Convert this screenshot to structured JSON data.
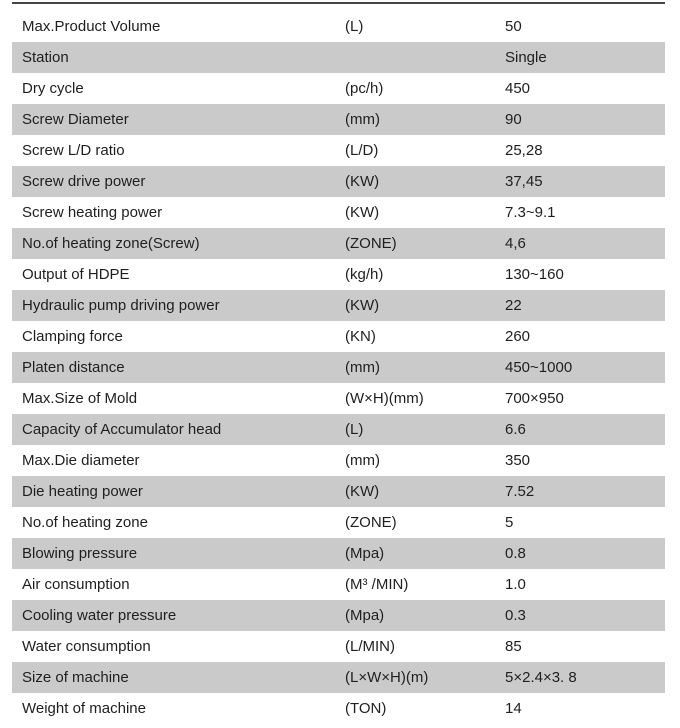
{
  "colors": {
    "row_alt_bg": "#cacaca",
    "text": "#1f1f1f",
    "top_border": "#454545",
    "page_bg": "#ffffff"
  },
  "table": {
    "columns": [
      "parameter",
      "unit",
      "value"
    ],
    "rows": [
      {
        "parameter": "Max.Product Volume",
        "unit": "(L)",
        "value": "50"
      },
      {
        "parameter": "Station",
        "unit": "",
        "value": "Single"
      },
      {
        "parameter": "Dry cycle",
        "unit": "(pc/h)",
        "value": "450"
      },
      {
        "parameter": "Screw Diameter",
        "unit": "(mm)",
        "value": "90"
      },
      {
        "parameter": "Screw L/D ratio",
        "unit": "(L/D)",
        "value": "25,28"
      },
      {
        "parameter": "Screw drive power",
        "unit": "(KW)",
        "value": "37,45"
      },
      {
        "parameter": "Screw heating power",
        "unit": "(KW)",
        "value": "7.3~9.1"
      },
      {
        "parameter": "No.of heating zone(Screw)",
        "unit": "(ZONE)",
        "value": "4,6"
      },
      {
        "parameter": "Output of HDPE",
        "unit": "(kg/h)",
        "value": "130~160"
      },
      {
        "parameter": "Hydraulic pump driving power",
        "unit": "(KW)",
        "value": "22"
      },
      {
        "parameter": "Clamping force",
        "unit": "(KN)",
        "value": "260"
      },
      {
        "parameter": "Platen distance",
        "unit": "(mm)",
        "value": "450~1000"
      },
      {
        "parameter": "Max.Size of Mold",
        "unit": "(W×H)(mm)",
        "value": "700×950"
      },
      {
        "parameter": "Capacity of Accumulator head",
        "unit": "(L)",
        "value": "6.6"
      },
      {
        "parameter": "Max.Die diameter",
        "unit": "(mm)",
        "value": "350"
      },
      {
        "parameter": "Die heating power",
        "unit": "(KW)",
        "value": "7.52"
      },
      {
        "parameter": "No.of heating zone",
        "unit": "(ZONE)",
        "value": "5"
      },
      {
        "parameter": "Blowing pressure",
        "unit": "(Mpa)",
        "value": "0.8"
      },
      {
        "parameter": "Air consumption",
        "unit": "(M³ /MIN)",
        "value": "1.0"
      },
      {
        "parameter": "Cooling water pressure",
        "unit": "(Mpa)",
        "value": "0.3"
      },
      {
        "parameter": "Water consumption",
        "unit": "(L/MIN)",
        "value": "85"
      },
      {
        "parameter": "Size of machine",
        "unit": "(L×W×H)(m)",
        "value": "5×2.4×3. 8"
      },
      {
        "parameter": "Weight of machine",
        "unit": "(TON)",
        "value": "14"
      }
    ]
  }
}
